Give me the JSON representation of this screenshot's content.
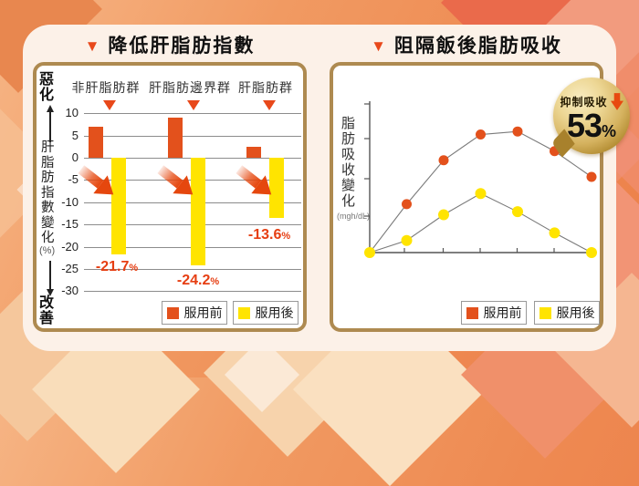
{
  "titles": {
    "left": "降低肝脂肪指數",
    "right": "阻隔飯後脂肪吸收"
  },
  "icons": {
    "triangle_down": "▼",
    "down_arrow": "down-trend-arrow",
    "badge_arrow": "down-block-arrow"
  },
  "colors": {
    "before_orange": "#E3511C",
    "after_yellow": "#FFE400",
    "gold_border": "#AE8A50",
    "accent_red": "#E8481A",
    "value_label_red": "#E63E12",
    "badge_gold": "#C9A54D",
    "background_orange": "#EE8A52",
    "card_cream": "#FCF1E8",
    "gridline_gray": "#8C8C8C"
  },
  "legend": {
    "before": "服用前",
    "after": "服用後"
  },
  "left_chart": {
    "axis_top_label": "惡化",
    "axis_bottom_label": "改善",
    "y_axis_label": "肝脂肪指數變化",
    "y_axis_unit": "(%)",
    "percent": "%"
  },
  "right_chart": {
    "y_axis_label": "脂肪吸收變化",
    "y_axis_unit": "(mgh/dL)",
    "badge": {
      "label": "抑制吸收",
      "value": "53",
      "unit": "%"
    }
  },
  "chart_data": [
    {
      "type": "bar",
      "title": "降低肝脂肪指數",
      "categories": [
        "非肝脂肪群",
        "肝脂肪邊界群",
        "肝脂肪群"
      ],
      "series": [
        {
          "name": "服用前",
          "color": "#E3511C",
          "values": [
            7,
            9,
            2.5
          ]
        },
        {
          "name": "服用後",
          "color": "#FFE400",
          "values": [
            -21.7,
            -24.2,
            -13.6
          ]
        }
      ],
      "annotations": [
        "-21.7",
        "-24.2",
        "-13.6"
      ],
      "xlabel": "",
      "ylabel": "肝脂肪指數變化(%)",
      "ylim": [
        -30,
        10
      ],
      "ytick_step": 5,
      "y_direction_labels": {
        "up": "惡化",
        "down": "改善"
      },
      "grid": true,
      "legend_position": "bottom-right"
    },
    {
      "type": "line",
      "title": "阻隔飯後脂肪吸收",
      "x": [
        0,
        1,
        2,
        3,
        4,
        5,
        6
      ],
      "series": [
        {
          "name": "服用前",
          "color": "#E3511C",
          "values": [
            0,
            3.2,
            6.1,
            7.8,
            8.0,
            6.7,
            5.0
          ]
        },
        {
          "name": "服用後",
          "color": "#FFE400",
          "values": [
            0,
            0.8,
            2.5,
            3.9,
            2.7,
            1.3,
            0
          ]
        }
      ],
      "xlabel": "",
      "ylabel": "脂肪吸收變化(mgh/dL)",
      "ylim": [
        0,
        10
      ],
      "grid": false,
      "legend_position": "bottom-right",
      "annotation": "抑制吸收 53%"
    }
  ]
}
